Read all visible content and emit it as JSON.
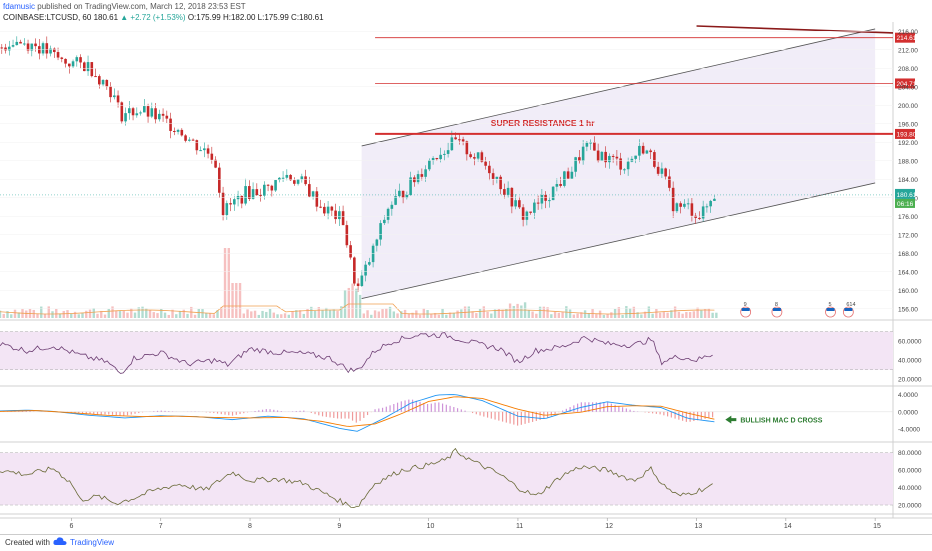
{
  "header": {
    "author": "fdamusic",
    "published": "published on TradingView.com, March 12, 2018 23:53 EST"
  },
  "symbol_bar": {
    "symbol": "COINBASE:LTCUSD, 60",
    "last": "180.61",
    "change": "+2.72 (+1.53%)",
    "open": "O:175.99",
    "high": "H:182.00",
    "low": "L:175.99",
    "close": "C:180.61"
  },
  "footer": {
    "created": "Created with",
    "brand": "TradingView"
  },
  "colors": {
    "up": "#26a69a",
    "down": "#c62828",
    "channel_fill": "#eee8f6",
    "resistance": "#d32f2f",
    "indicator_band": "#f3e5f5",
    "indicator_line": "#6d3e73",
    "macd_line": "#2196f3",
    "signal_line": "#f57c00",
    "annotation_green": "#2e7d32",
    "trend_dark": "#8b1a1a"
  },
  "chart_data": [
    {
      "type": "line",
      "panel": "price",
      "style": "candlestick",
      "y_range": [
        154,
        218
      ],
      "ticks": [
        "216.00",
        "212.00",
        "208.00",
        "204.00",
        "200.00",
        "196.00",
        "192.00",
        "188.00",
        "184.00",
        "180.00",
        "176.00",
        "172.00",
        "168.00",
        "164.00",
        "160.00",
        "156.00"
      ],
      "x_ticks": [
        {
          "label": "6",
          "day": 6
        },
        {
          "label": "7",
          "day": 7
        },
        {
          "label": "8",
          "day": 8
        },
        {
          "label": "9",
          "day": 9
        },
        {
          "label": "10",
          "day": 10
        },
        {
          "label": "11",
          "day": 11
        },
        {
          "label": "12",
          "day": 12
        },
        {
          "label": "13",
          "day": 13
        },
        {
          "label": "14",
          "day": 14
        },
        {
          "label": "15",
          "day": 15
        }
      ],
      "x_range": [
        5.2,
        15.2
      ],
      "close_path": [
        [
          5.2,
          212.5
        ],
        [
          5.35,
          214
        ],
        [
          5.6,
          213
        ],
        [
          5.9,
          209.5
        ],
        [
          6.2,
          208.5
        ],
        [
          6.45,
          203
        ],
        [
          6.55,
          198
        ],
        [
          6.75,
          199
        ],
        [
          7.0,
          197
        ],
        [
          7.2,
          195
        ],
        [
          7.35,
          192
        ],
        [
          7.6,
          189
        ],
        [
          7.7,
          177
        ],
        [
          7.95,
          181
        ],
        [
          8.2,
          182
        ],
        [
          8.4,
          185
        ],
        [
          8.6,
          183
        ],
        [
          8.8,
          178
        ],
        [
          9.05,
          175
        ],
        [
          9.1,
          168
        ],
        [
          9.2,
          160
        ],
        [
          9.35,
          167
        ],
        [
          9.55,
          178
        ],
        [
          9.8,
          183
        ],
        [
          10.05,
          189
        ],
        [
          10.3,
          192
        ],
        [
          10.45,
          190
        ],
        [
          10.7,
          186
        ],
        [
          10.95,
          179
        ],
        [
          11.05,
          176
        ],
        [
          11.2,
          178
        ],
        [
          11.4,
          182
        ],
        [
          11.6,
          186
        ],
        [
          11.75,
          191
        ],
        [
          11.95,
          189
        ],
        [
          12.2,
          187
        ],
        [
          12.4,
          191
        ],
        [
          12.6,
          186
        ],
        [
          12.75,
          178
        ],
        [
          12.9,
          178
        ],
        [
          13.05,
          176
        ],
        [
          13.2,
          180.6
        ]
      ],
      "last_price": "180.61",
      "countdown": "06:16",
      "levels": [
        {
          "value": 214.61,
          "label": "214.61"
        },
        {
          "value": 204.71,
          "label": "204.71"
        },
        {
          "value": 193.8,
          "label": "193.80"
        }
      ],
      "channel": {
        "upper": [
          [
            9.25,
            191.2
          ],
          [
            15.0,
            216.5
          ]
        ],
        "lower": [
          [
            9.25,
            158.2
          ],
          [
            15.0,
            183.2
          ]
        ]
      },
      "dark_trendline": [
        [
          13.0,
          218
        ],
        [
          15.2,
          215.2
        ]
      ],
      "annotations": [
        {
          "text": "SUPER RESISTANCE 1 hr",
          "x": 11.2,
          "y": 195.5
        }
      ],
      "event_markers": [
        {
          "x": 13.55,
          "count": "9"
        },
        {
          "x": 13.9,
          "count": "8"
        },
        {
          "x": 14.5,
          "count": "5"
        },
        {
          "x": 14.7,
          "count": "614"
        }
      ]
    },
    {
      "type": "line",
      "panel": "rsi",
      "y_range": [
        15,
        80
      ],
      "ticks": [
        "60.0000",
        "40.0000",
        "20.0000"
      ],
      "band": [
        30,
        70
      ],
      "path": [
        [
          5.2,
          57
        ],
        [
          5.5,
          50
        ],
        [
          5.8,
          55
        ],
        [
          6.1,
          45
        ],
        [
          6.4,
          38
        ],
        [
          6.55,
          26
        ],
        [
          6.7,
          42
        ],
        [
          7.0,
          48
        ],
        [
          7.3,
          36
        ],
        [
          7.6,
          40
        ],
        [
          7.75,
          35
        ],
        [
          8.0,
          52
        ],
        [
          8.3,
          48
        ],
        [
          8.6,
          47
        ],
        [
          8.9,
          42
        ],
        [
          9.1,
          30
        ],
        [
          9.2,
          29
        ],
        [
          9.4,
          50
        ],
        [
          9.6,
          60
        ],
        [
          9.9,
          67
        ],
        [
          10.2,
          66
        ],
        [
          10.5,
          58
        ],
        [
          10.8,
          52
        ],
        [
          11.0,
          38
        ],
        [
          11.2,
          50
        ],
        [
          11.5,
          54
        ],
        [
          11.75,
          64
        ],
        [
          12.0,
          57
        ],
        [
          12.3,
          56
        ],
        [
          12.5,
          62
        ],
        [
          12.6,
          38
        ],
        [
          12.8,
          44
        ],
        [
          13.0,
          40
        ],
        [
          13.2,
          47
        ]
      ]
    },
    {
      "type": "line",
      "panel": "macd",
      "y_range": [
        -6.5,
        5.5
      ],
      "ticks": [
        "4.0000",
        "0.0000",
        "-4.0000"
      ],
      "series": [
        {
          "role": "macd",
          "values": [
            [
              5.2,
              0.2
            ],
            [
              5.5,
              0.4
            ],
            [
              5.8,
              0.1
            ],
            [
              6.2,
              -0.8
            ],
            [
              6.6,
              -1.4
            ],
            [
              7.0,
              -0.9
            ],
            [
              7.4,
              -1.1
            ],
            [
              7.8,
              -1.8
            ],
            [
              8.2,
              -1.0
            ],
            [
              8.6,
              -1.6
            ],
            [
              9.0,
              -3.8
            ],
            [
              9.2,
              -4.5
            ],
            [
              9.5,
              -1.5
            ],
            [
              9.8,
              2.0
            ],
            [
              10.1,
              3.9
            ],
            [
              10.3,
              4.0
            ],
            [
              10.6,
              2.6
            ],
            [
              11.0,
              -1.0
            ],
            [
              11.3,
              -1.6
            ],
            [
              11.7,
              1.0
            ],
            [
              12.0,
              2.3
            ],
            [
              12.3,
              1.5
            ],
            [
              12.6,
              1.0
            ],
            [
              12.9,
              -1.5
            ],
            [
              13.2,
              -2.3
            ]
          ]
        },
        {
          "role": "signal",
          "values": [
            [
              5.2,
              0.1
            ],
            [
              5.6,
              0.3
            ],
            [
              6.0,
              -0.2
            ],
            [
              6.4,
              -0.8
            ],
            [
              6.8,
              -1.1
            ],
            [
              7.2,
              -1.0
            ],
            [
              7.6,
              -1.3
            ],
            [
              8.0,
              -1.4
            ],
            [
              8.4,
              -1.3
            ],
            [
              8.8,
              -2.2
            ],
            [
              9.1,
              -3.4
            ],
            [
              9.4,
              -2.8
            ],
            [
              9.7,
              -0.4
            ],
            [
              10.0,
              2.4
            ],
            [
              10.3,
              3.5
            ],
            [
              10.6,
              3.1
            ],
            [
              11.0,
              0.6
            ],
            [
              11.3,
              -0.8
            ],
            [
              11.7,
              -0.1
            ],
            [
              12.0,
              1.2
            ],
            [
              12.3,
              1.4
            ],
            [
              12.6,
              1.3
            ],
            [
              12.9,
              -0.3
            ],
            [
              13.2,
              -1.7
            ]
          ]
        }
      ],
      "annotation": "BULLISH MAC D CROSS"
    },
    {
      "type": "line",
      "panel": "stochastic",
      "y_range": [
        12,
        90
      ],
      "ticks": [
        "80.0000",
        "60.0000",
        "40.0000",
        "20.0000"
      ],
      "band": [
        20,
        80
      ],
      "path": [
        [
          5.2,
          60
        ],
        [
          5.5,
          55
        ],
        [
          5.8,
          62
        ],
        [
          6.0,
          45
        ],
        [
          6.1,
          26
        ],
        [
          6.3,
          30
        ],
        [
          6.5,
          22
        ],
        [
          6.7,
          28
        ],
        [
          6.9,
          36
        ],
        [
          7.2,
          44
        ],
        [
          7.5,
          37
        ],
        [
          7.8,
          58
        ],
        [
          8.0,
          48
        ],
        [
          8.3,
          50
        ],
        [
          8.6,
          45
        ],
        [
          8.9,
          30
        ],
        [
          9.1,
          20
        ],
        [
          9.2,
          18
        ],
        [
          9.4,
          45
        ],
        [
          9.7,
          60
        ],
        [
          10.0,
          66
        ],
        [
          10.2,
          72
        ],
        [
          10.3,
          82
        ],
        [
          10.5,
          70
        ],
        [
          10.8,
          55
        ],
        [
          11.0,
          40
        ],
        [
          11.2,
          30
        ],
        [
          11.5,
          54
        ],
        [
          11.7,
          64
        ],
        [
          12.0,
          60
        ],
        [
          12.3,
          48
        ],
        [
          12.5,
          62
        ],
        [
          12.6,
          45
        ],
        [
          12.8,
          30
        ],
        [
          13.0,
          36
        ],
        [
          13.2,
          43
        ]
      ]
    }
  ]
}
